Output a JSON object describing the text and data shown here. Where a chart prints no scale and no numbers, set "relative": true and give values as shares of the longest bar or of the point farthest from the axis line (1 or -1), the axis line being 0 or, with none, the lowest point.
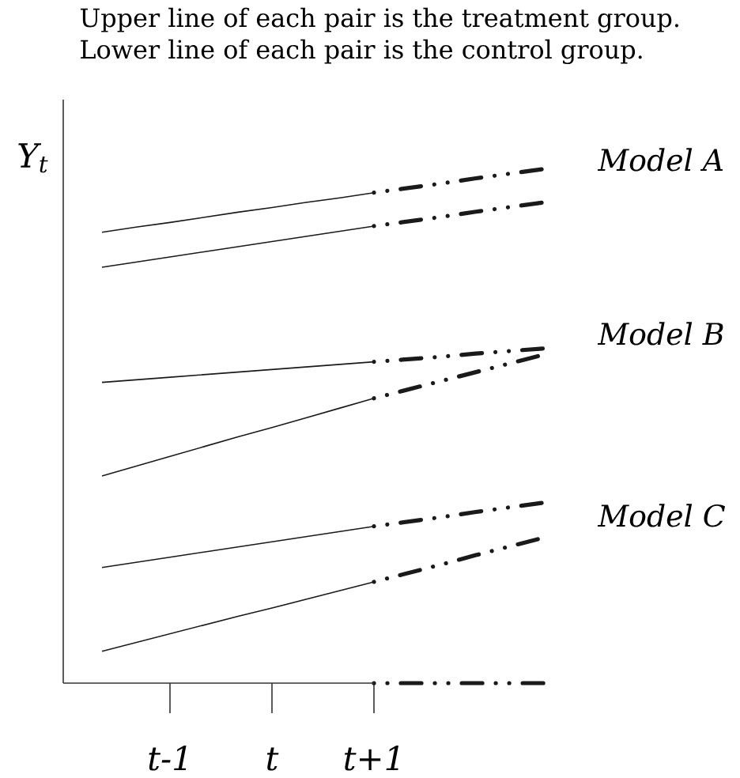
{
  "chart_data": {
    "type": "line",
    "relative": true,
    "title": "Upper line of each pair is the treatment group.",
    "subtitle": "Lower line of each pair is the control group.",
    "ylabel": "Y$_{t}$",
    "categories": [
      null,
      null,
      "t-1",
      null,
      null,
      "t",
      null,
      null,
      "t+1",
      null,
      null,
      null,
      null,
      null
    ],
    "tick_labels": "x",
    "series": [
      {
        "color": "#1a1a1a",
        "line_style": "solid",
        "values": [
          0.877,
          0.887,
          0.896,
          0.906,
          0.916,
          0.925,
          0.935,
          0.944,
          0.954,
          null,
          null,
          null,
          null,
          null
        ]
      },
      {
        "color": "#1a1a1a",
        "line_style": "dashed",
        "values": [
          null,
          null,
          null,
          null,
          null,
          null,
          null,
          null,
          0.954,
          0.963,
          0.972,
          0.982,
          0.991,
          1.0
        ]
      },
      {
        "color": "#1a1a1a",
        "line_style": "solid",
        "values": [
          0.809,
          0.819,
          0.829,
          0.839,
          0.849,
          0.859,
          0.869,
          0.879,
          0.889,
          null,
          null,
          null,
          null,
          null
        ]
      },
      {
        "color": "#1a1a1a",
        "line_style": "dashed",
        "values": [
          null,
          null,
          null,
          null,
          null,
          null,
          null,
          null,
          0.889,
          0.898,
          0.907,
          0.917,
          0.926,
          0.935
        ]
      },
      {
        "color": "#1a1a1a",
        "line_style": "solid",
        "values": [
          0.585,
          0.59,
          0.595,
          0.6,
          0.605,
          0.61,
          0.615,
          0.62,
          0.625,
          null,
          null,
          null,
          null,
          null
        ]
      },
      {
        "color": "#1a1a1a",
        "line_style": "dashed",
        "values": [
          null,
          null,
          null,
          null,
          null,
          null,
          null,
          null,
          0.625,
          0.63,
          0.635,
          0.641,
          0.646,
          0.651
        ]
      },
      {
        "color": "#1a1a1a",
        "line_style": "solid",
        "values": [
          0.403,
          0.422,
          0.441,
          0.46,
          0.479,
          0.497,
          0.516,
          0.535,
          0.554,
          null,
          null,
          null,
          null,
          null
        ]
      },
      {
        "color": "#1a1a1a",
        "line_style": "dashed",
        "values": [
          null,
          null,
          null,
          null,
          null,
          null,
          null,
          null,
          0.554,
          0.571,
          0.588,
          0.605,
          0.622,
          0.639
        ]
      },
      {
        "color": "#1a1a1a",
        "line_style": "solid",
        "values": [
          0.225,
          0.235,
          0.245,
          0.255,
          0.265,
          0.275,
          0.285,
          0.295,
          0.305,
          null,
          null,
          null,
          null,
          null
        ]
      },
      {
        "color": "#1a1a1a",
        "line_style": "dashed",
        "values": [
          null,
          null,
          null,
          null,
          null,
          null,
          null,
          null,
          0.305,
          0.314,
          0.323,
          0.333,
          0.342,
          0.351
        ]
      },
      {
        "color": "#1a1a1a",
        "line_style": "solid",
        "values": [
          0.062,
          0.079,
          0.096,
          0.113,
          0.13,
          0.146,
          0.163,
          0.18,
          0.197,
          null,
          null,
          null,
          null,
          null
        ]
      },
      {
        "color": "#1a1a1a",
        "line_style": "dashed",
        "values": [
          null,
          null,
          null,
          null,
          null,
          null,
          null,
          null,
          0.197,
          0.214,
          0.231,
          0.249,
          0.266,
          0.283
        ]
      },
      {
        "color": "#1a1a1a",
        "line_style": "dashed",
        "values": [
          null,
          null,
          null,
          null,
          null,
          null,
          null,
          null,
          0,
          0,
          0,
          0,
          0,
          0
        ]
      }
    ],
    "annotations": [
      "Model A",
      "Model B",
      "Model C"
    ]
  }
}
